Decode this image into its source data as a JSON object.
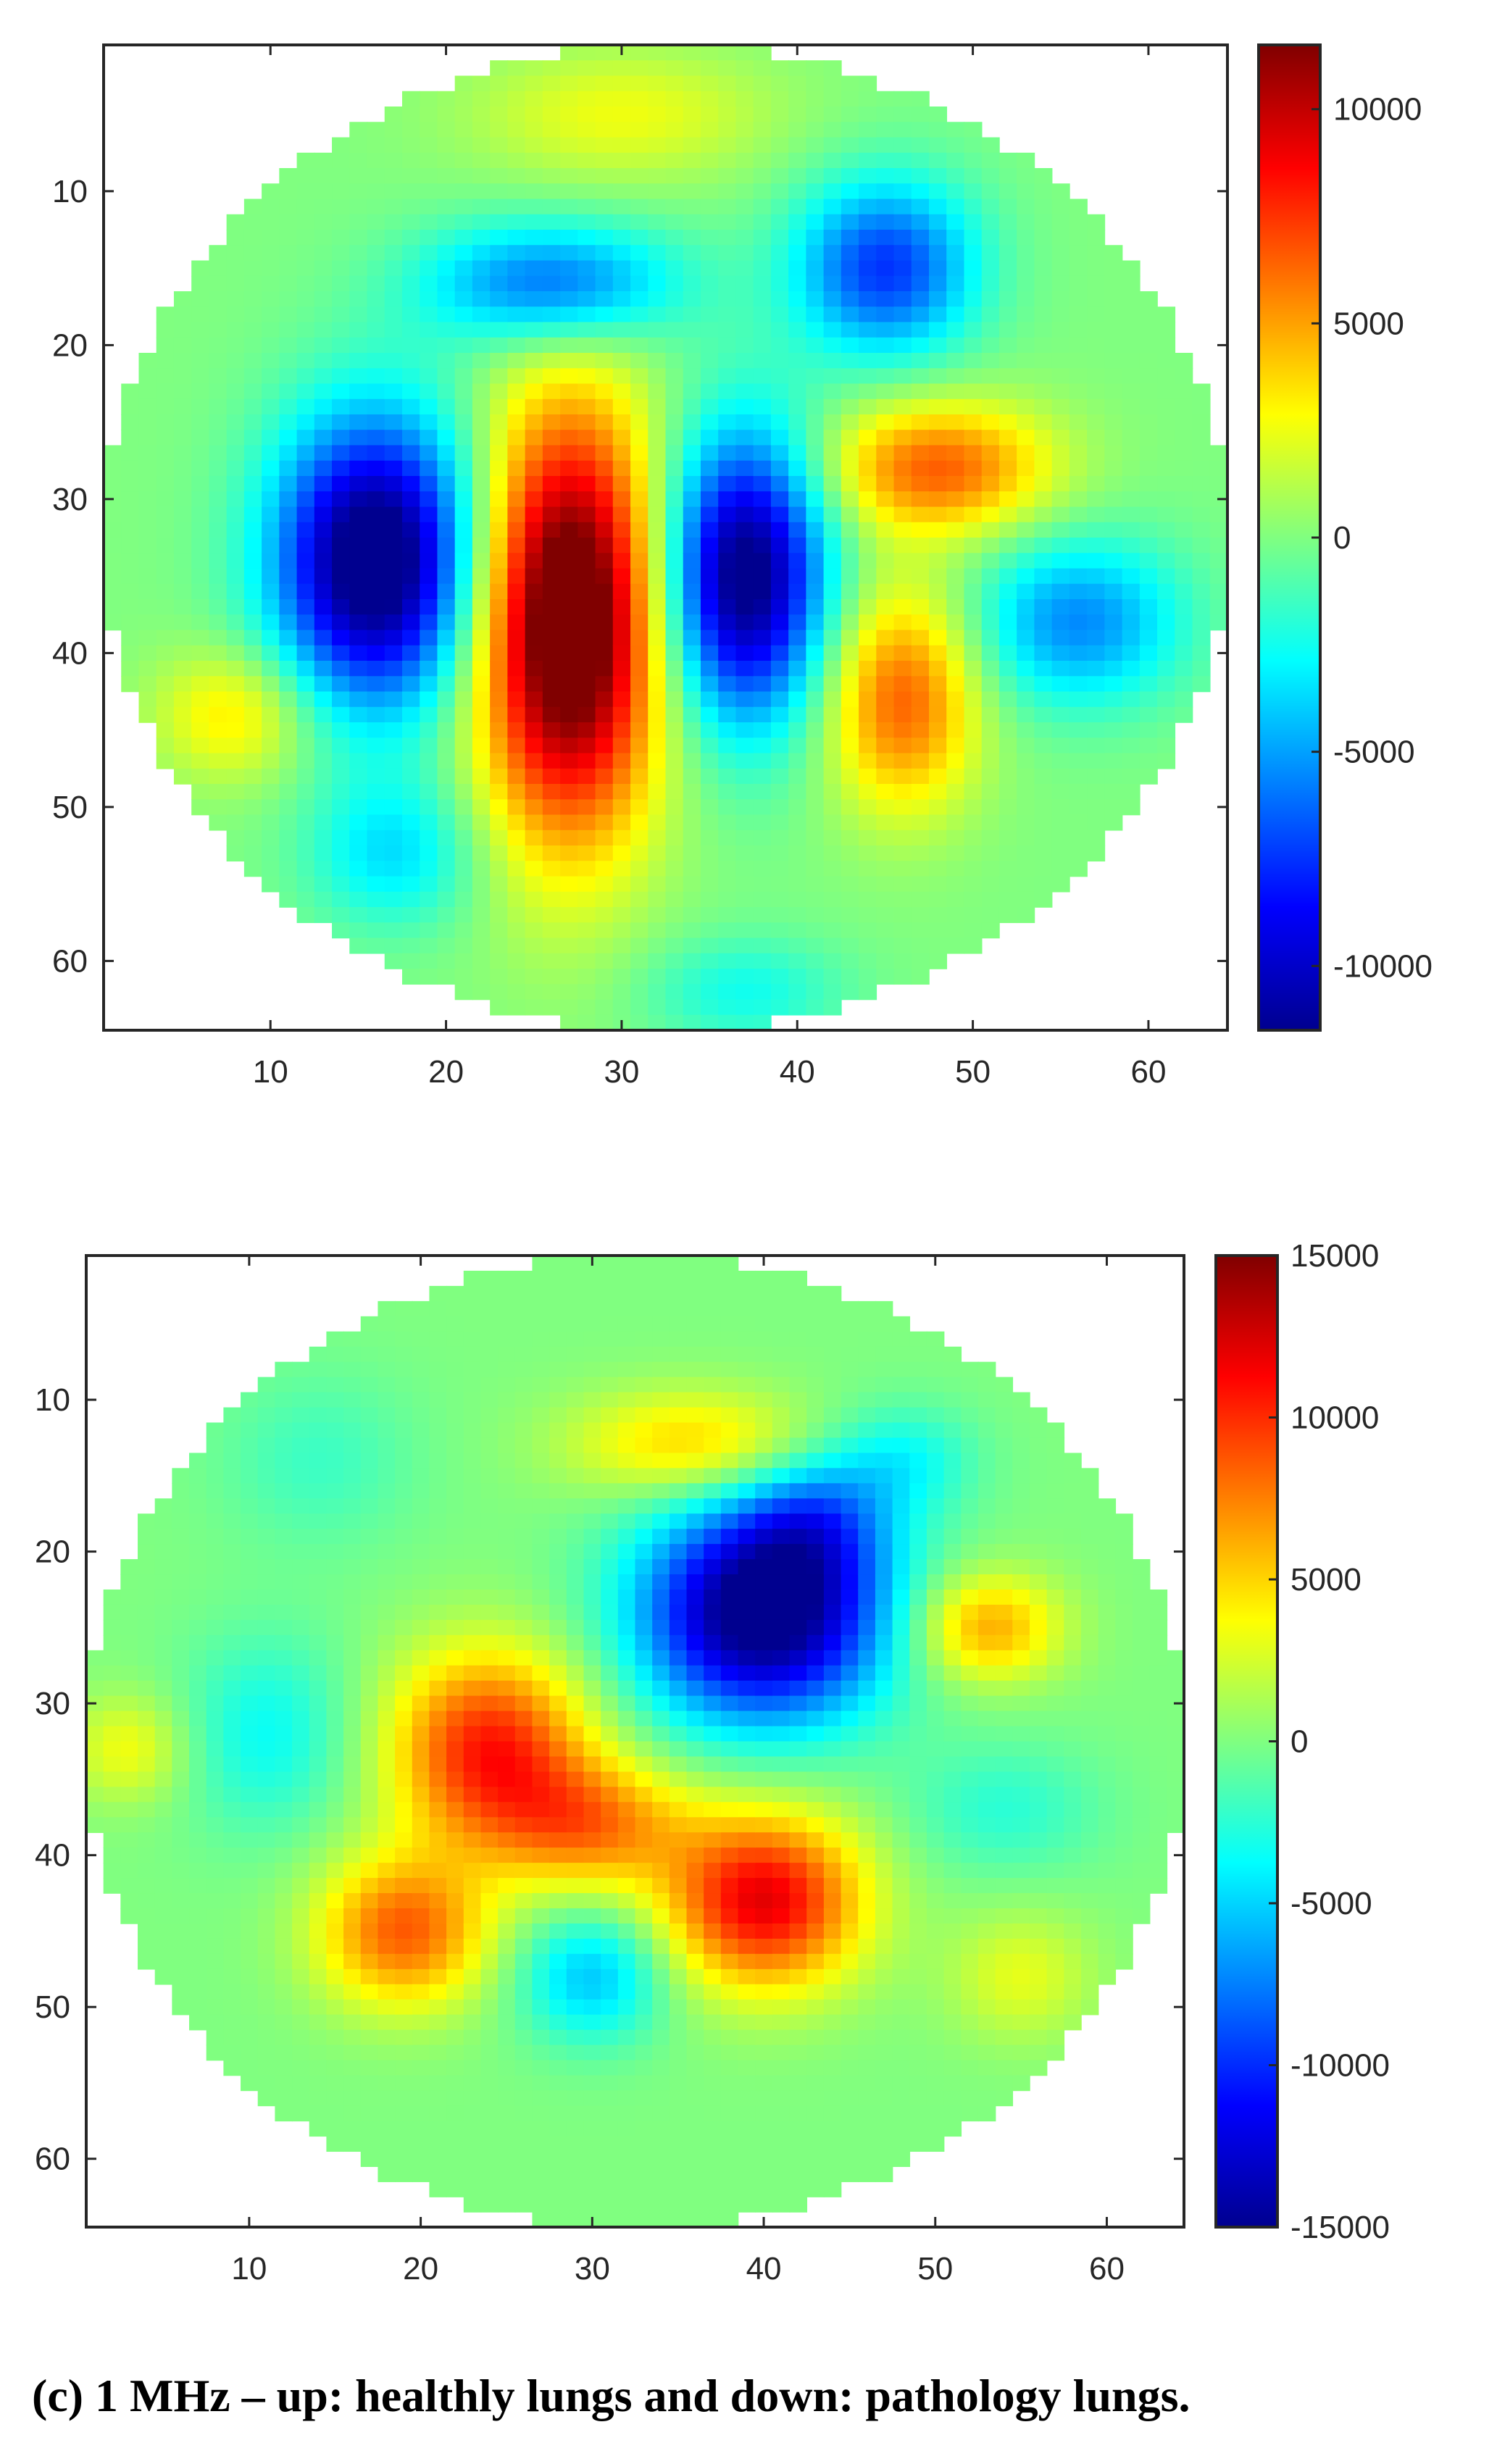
{
  "caption": "(c) 1 MHz – up: healthly lungs and down: pathology lungs.",
  "chart_data": [
    {
      "type": "heatmap",
      "title": "",
      "xlabel": "",
      "ylabel": "",
      "colormap": "jet",
      "xlim": [
        0.5,
        64.5
      ],
      "ylim": [
        0.5,
        64.5
      ],
      "x_ticks": [
        10,
        20,
        30,
        40,
        50,
        60
      ],
      "y_ticks": [
        10,
        20,
        30,
        40,
        50,
        60
      ],
      "color_range": [
        -11500,
        11500
      ],
      "colorbar_ticks": [
        10000,
        5000,
        0,
        -5000,
        -10000
      ],
      "mask_circle": {
        "cx": 32.5,
        "cy": 32.5,
        "r": 32
      },
      "blobs": [
        {
          "x": 16,
          "y": 34,
          "sx": 4.0,
          "sy": 6.5,
          "value": -13500
        },
        {
          "x": 27,
          "y": 38,
          "sx": 3.6,
          "sy": 9.5,
          "value": 14500
        },
        {
          "x": 37,
          "y": 35,
          "sx": 3.2,
          "sy": 6.5,
          "value": -12500
        },
        {
          "x": 26,
          "y": 16,
          "sx": 5.0,
          "sy": 2.8,
          "value": -6500
        },
        {
          "x": 45,
          "y": 15,
          "sx": 3.6,
          "sy": 4.0,
          "value": -7500
        },
        {
          "x": 48,
          "y": 28,
          "sx": 4.5,
          "sy": 3.0,
          "value": 6500
        },
        {
          "x": 46,
          "y": 43,
          "sx": 3.0,
          "sy": 5.0,
          "value": 6500
        },
        {
          "x": 56,
          "y": 38,
          "sx": 4.2,
          "sy": 3.8,
          "value": -5500
        },
        {
          "x": 8,
          "y": 44,
          "sx": 3.2,
          "sy": 3.0,
          "value": 3500
        },
        {
          "x": 17,
          "y": 53,
          "sx": 3.4,
          "sy": 3.4,
          "value": -3500
        },
        {
          "x": 30,
          "y": 5,
          "sx": 6.0,
          "sy": 3.0,
          "value": 2500
        },
        {
          "x": 37,
          "y": 62,
          "sx": 4.0,
          "sy": 2.5,
          "value": -2500
        }
      ]
    },
    {
      "type": "heatmap",
      "title": "",
      "xlabel": "",
      "ylabel": "",
      "colormap": "jet",
      "xlim": [
        0.5,
        64.5
      ],
      "ylim": [
        0.5,
        64.5
      ],
      "x_ticks": [
        10,
        20,
        30,
        40,
        50,
        60
      ],
      "y_ticks": [
        10,
        20,
        30,
        40,
        50,
        60
      ],
      "color_range": [
        -15000,
        15000
      ],
      "colorbar_ticks": [
        15000,
        10000,
        5000,
        0,
        -5000,
        -10000,
        -15000
      ],
      "mask_circle": {
        "cx": 32.5,
        "cy": 32.5,
        "r": 32
      },
      "blobs": [
        {
          "x": 40,
          "y": 24,
          "sx": 5.0,
          "sy": 5.0,
          "value": -17000
        },
        {
          "x": 43,
          "y": 18,
          "sx": 3.0,
          "sy": 3.0,
          "value": -5000
        },
        {
          "x": 24,
          "y": 33,
          "sx": 4.0,
          "sy": 4.5,
          "value": 10500
        },
        {
          "x": 19,
          "y": 45,
          "sx": 3.5,
          "sy": 3.5,
          "value": 8500
        },
        {
          "x": 30,
          "y": 38,
          "sx": 4.0,
          "sy": 3.0,
          "value": 7000
        },
        {
          "x": 40,
          "y": 43,
          "sx": 4.0,
          "sy": 4.0,
          "value": 12000
        },
        {
          "x": 36,
          "y": 13,
          "sx": 5.0,
          "sy": 2.5,
          "value": 5500
        },
        {
          "x": 53,
          "y": 25,
          "sx": 3.0,
          "sy": 2.5,
          "value": 6500
        },
        {
          "x": 30,
          "y": 48,
          "sx": 3.0,
          "sy": 3.0,
          "value": -5500
        },
        {
          "x": 11,
          "y": 32,
          "sx": 3.5,
          "sy": 4.5,
          "value": -3500
        },
        {
          "x": 3,
          "y": 33,
          "sx": 2.5,
          "sy": 2.5,
          "value": 3500
        },
        {
          "x": 48,
          "y": 14,
          "sx": 3.0,
          "sy": 2.5,
          "value": -3500
        },
        {
          "x": 54,
          "y": 37,
          "sx": 4.0,
          "sy": 3.0,
          "value": -2500
        },
        {
          "x": 55,
          "y": 48,
          "sx": 3.0,
          "sy": 3.0,
          "value": 3000
        },
        {
          "x": 14,
          "y": 14,
          "sx": 4.0,
          "sy": 4.0,
          "value": -2000
        }
      ]
    }
  ]
}
